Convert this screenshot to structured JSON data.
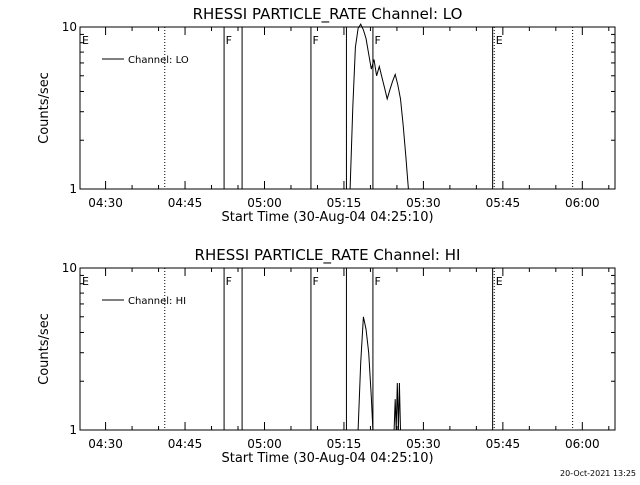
{
  "footer_timestamp": "20-Oct-2021 13:25",
  "colors": {
    "foreground": "#000000",
    "background": "#ffffff"
  },
  "chart_data": [
    {
      "type": "line",
      "title": "RHESSI PARTICLE_RATE Channel: LO",
      "xlabel": "Start Time (30-Aug-04 04:25:10)",
      "ylabel": "Counts/sec",
      "x_unit": "minutes after 04:25:10",
      "xlim": [
        0,
        101
      ],
      "ylim": [
        1,
        10
      ],
      "y_scale": "log",
      "yticks": [
        {
          "value": 1,
          "label": "1"
        },
        {
          "value": 10,
          "label": "10"
        }
      ],
      "xticks": [
        {
          "x": 4.83,
          "label": "04:30"
        },
        {
          "x": 19.83,
          "label": "04:45"
        },
        {
          "x": 34.83,
          "label": "05:00"
        },
        {
          "x": 49.83,
          "label": "05:15"
        },
        {
          "x": 64.83,
          "label": "05:30"
        },
        {
          "x": 79.83,
          "label": "05:45"
        },
        {
          "x": 94.83,
          "label": "06:00"
        }
      ],
      "legend": {
        "label": "Channel: LO",
        "position": "top-left"
      },
      "vlines": [
        {
          "x": 16.0,
          "style": "dotted"
        },
        {
          "x": 27.2,
          "style": "solid"
        },
        {
          "x": 30.6,
          "style": "solid"
        },
        {
          "x": 43.6,
          "style": "solid"
        },
        {
          "x": 50.3,
          "style": "solid"
        },
        {
          "x": 55.3,
          "style": "solid"
        },
        {
          "x": 77.9,
          "style": "solid"
        },
        {
          "x": 78.2,
          "style": "dotted"
        },
        {
          "x": 93.0,
          "style": "dotted"
        }
      ],
      "flags": [
        {
          "x": 0.2,
          "text": "E"
        },
        {
          "x": 27.3,
          "text": "F"
        },
        {
          "x": 43.7,
          "text": "F"
        },
        {
          "x": 55.4,
          "text": "F"
        },
        {
          "x": 78.3,
          "text": "E"
        }
      ],
      "series": [
        {
          "name": "Channel: LO",
          "x": [
            51.0,
            51.5,
            52.0,
            52.5,
            53.0,
            53.5,
            54.0,
            54.5,
            55.0,
            55.5,
            56.0,
            56.5,
            57.0,
            57.5,
            58.0,
            58.5,
            59.0,
            59.5,
            60.0,
            60.5,
            61.0,
            61.5,
            62.0
          ],
          "y": [
            1.0,
            3.2,
            7.5,
            9.8,
            10.4,
            9.6,
            8.5,
            6.8,
            5.5,
            6.3,
            5.0,
            5.7,
            4.9,
            4.2,
            3.6,
            4.1,
            4.6,
            5.1,
            4.4,
            3.6,
            2.5,
            1.6,
            1.0
          ]
        }
      ]
    },
    {
      "type": "line",
      "title": "RHESSI PARTICLE_RATE Channel: HI",
      "xlabel": "Start Time (30-Aug-04 04:25:10)",
      "ylabel": "Counts/sec",
      "x_unit": "minutes after 04:25:10",
      "xlim": [
        0,
        101
      ],
      "ylim": [
        1,
        10
      ],
      "y_scale": "log",
      "yticks": [
        {
          "value": 1,
          "label": "1"
        },
        {
          "value": 10,
          "label": "10"
        }
      ],
      "xticks": [
        {
          "x": 4.83,
          "label": "04:30"
        },
        {
          "x": 19.83,
          "label": "04:45"
        },
        {
          "x": 34.83,
          "label": "05:00"
        },
        {
          "x": 49.83,
          "label": "05:15"
        },
        {
          "x": 64.83,
          "label": "05:30"
        },
        {
          "x": 79.83,
          "label": "05:45"
        },
        {
          "x": 94.83,
          "label": "06:00"
        }
      ],
      "legend": {
        "label": "Channel: HI",
        "position": "top-left"
      },
      "vlines": [
        {
          "x": 16.0,
          "style": "dotted"
        },
        {
          "x": 27.2,
          "style": "solid"
        },
        {
          "x": 30.6,
          "style": "solid"
        },
        {
          "x": 43.6,
          "style": "solid"
        },
        {
          "x": 50.3,
          "style": "solid"
        },
        {
          "x": 55.3,
          "style": "solid"
        },
        {
          "x": 77.9,
          "style": "solid"
        },
        {
          "x": 78.2,
          "style": "dotted"
        },
        {
          "x": 93.0,
          "style": "dotted"
        }
      ],
      "flags": [
        {
          "x": 0.2,
          "text": "E"
        },
        {
          "x": 27.3,
          "text": "F"
        },
        {
          "x": 43.7,
          "text": "F"
        },
        {
          "x": 55.4,
          "text": "F"
        },
        {
          "x": 78.3,
          "text": "E"
        }
      ],
      "series": [
        {
          "name": "Channel: HI",
          "x": [
            52.5,
            53.0,
            53.5,
            54.0,
            54.5,
            55.0,
            55.3
          ],
          "y": [
            1.0,
            2.6,
            5.0,
            4.2,
            3.0,
            1.6,
            1.0
          ]
        },
        {
          "name": "Channel: HI",
          "x": [
            59.3,
            59.5,
            59.7,
            59.9,
            60.1,
            60.3,
            60.5
          ],
          "y": [
            1.0,
            1.55,
            1.0,
            1.95,
            1.0,
            1.95,
            1.0
          ]
        }
      ]
    }
  ]
}
